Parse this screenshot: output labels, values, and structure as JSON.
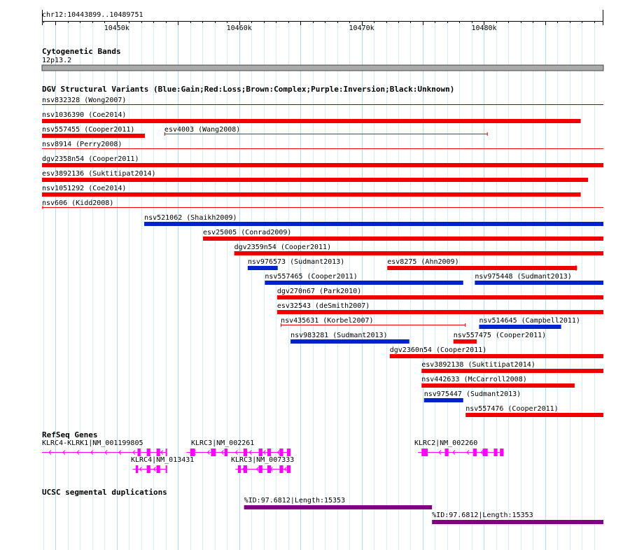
{
  "ruler": {
    "label": "chr12:10443899..10489751",
    "ticks": [
      {
        "label": "10450k",
        "pos": 10450000
      },
      {
        "label": "10460k",
        "pos": 10460000
      },
      {
        "label": "10470k",
        "pos": 10470000
      },
      {
        "label": "10480k",
        "pos": 10480000
      }
    ]
  },
  "view": {
    "start": 10443899,
    "end": 10489751
  },
  "tracks": {
    "cytoband": {
      "title": "Cytogenetic Bands",
      "band": "12p13.2",
      "color": "#aaaaaa"
    },
    "dgv": {
      "title": "DGV Structural Variants (Blue:Gain;Red:Loss;Brown:Complex;Purple:Inversion;Black:Unknown)",
      "legend": {
        "Gain": "#0022cc",
        "Loss": "#ee0000",
        "Complex": "#8b4513",
        "Inversion": "#800080",
        "Unknown": "#000000"
      },
      "features": [
        {
          "id": "nsv832328",
          "source": "(Wong2007)",
          "label": "nsv832328 (Wong2007)",
          "type": "Gain",
          "style": "line",
          "start": 10443899,
          "end": 10489751
        },
        {
          "id": "nsv1036390",
          "source": "(Coe2014)",
          "label": "nsv1036390 (Coe2014)",
          "type": "Loss",
          "style": "bar",
          "start": 10443899,
          "end": 10487900
        },
        {
          "id": "nsv557455",
          "source": "(Cooper2011)",
          "label": "nsv557455 (Cooper2011)",
          "type": "Loss",
          "style": "bar",
          "start": 10443899,
          "end": 10452300
        },
        {
          "id": "esv4003",
          "source": "(Wang2008)",
          "label": "esv4003 (Wang2008)",
          "type": "Loss",
          "style": "line",
          "start": 10453900,
          "end": 10480300
        },
        {
          "id": "nsv8914",
          "source": "(Perry2008)",
          "label": "nsv8914 (Perry2008)",
          "type": "Loss",
          "style": "line",
          "start": 10443899,
          "end": 10489751
        },
        {
          "id": "dgv2358n54",
          "source": "(Cooper2011)",
          "label": "dgv2358n54 (Cooper2011)",
          "type": "Loss",
          "style": "bar",
          "start": 10443899,
          "end": 10489751
        },
        {
          "id": "esv3892136",
          "source": "(Suktitipat2014)",
          "label": "esv3892136 (Suktitipat2014)",
          "type": "Loss",
          "style": "bar",
          "start": 10443899,
          "end": 10488500
        },
        {
          "id": "nsv1051292",
          "source": "(Coe2014)",
          "label": "nsv1051292 (Coe2014)",
          "type": "Loss",
          "style": "bar",
          "start": 10443899,
          "end": 10487900
        },
        {
          "id": "nsv606",
          "source": "(Kidd2008)",
          "label": "nsv606 (Kidd2008)",
          "type": "Loss",
          "style": "line",
          "start": 10443899,
          "end": 10489751
        },
        {
          "id": "nsv521062",
          "source": "(Shaikh2009)",
          "label": "nsv521062 (Shaikh2009)",
          "type": "Gain",
          "style": "bar",
          "start": 10452250,
          "end": 10489751
        },
        {
          "id": "esv25005",
          "source": "(Conrad2009)",
          "label": "esv25005 (Conrad2009)",
          "type": "Loss",
          "style": "bar",
          "start": 10457050,
          "end": 10489751
        },
        {
          "id": "dgv2359n54",
          "source": "(Cooper2011)",
          "label": "dgv2359n54 (Cooper2011)",
          "type": "Loss",
          "style": "bar",
          "start": 10459600,
          "end": 10489751
        },
        {
          "id": "nsv976573",
          "source": "(Sudmant2013)",
          "label": "nsv976573 (Sudmant2013)",
          "type": "Gain",
          "style": "bar",
          "start": 10460700,
          "end": 10463150
        },
        {
          "id": "esv8275",
          "source": "(Ahn2009)",
          "label": "esv8275 (Ahn2009)",
          "type": "Loss",
          "style": "bar",
          "start": 10472100,
          "end": 10487600
        },
        {
          "id": "nsv557465",
          "source": "(Cooper2011)",
          "label": "nsv557465 (Cooper2011)",
          "type": "Gain",
          "style": "bar",
          "start": 10462100,
          "end": 10478300
        },
        {
          "id": "nsv975448",
          "source": "(Sudmant2013)",
          "label": "nsv975448 (Sudmant2013)",
          "type": "Gain",
          "style": "bar",
          "start": 10479250,
          "end": 10489751
        },
        {
          "id": "dgv270n67",
          "source": "(Park2010)",
          "label": "dgv270n67 (Park2010)",
          "type": "Loss",
          "style": "bar",
          "start": 10463100,
          "end": 10489751
        },
        {
          "id": "esv32543",
          "source": "(deSmith2007)",
          "label": "esv32543 (deSmith2007)",
          "type": "Loss",
          "style": "bar",
          "start": 10463100,
          "end": 10489751
        },
        {
          "id": "nsv435631",
          "source": "(Korbel2007)",
          "label": "nsv435631 (Korbel2007)",
          "type": "Loss",
          "style": "line",
          "start": 10463400,
          "end": 10478500
        },
        {
          "id": "nsv514645",
          "source": "(Campbell2011)",
          "label": "nsv514645 (Campbell2011)",
          "type": "Gain",
          "style": "bar",
          "start": 10479600,
          "end": 10486300
        },
        {
          "id": "nsv983281",
          "source": "(Sudmant2013)",
          "label": "nsv983281 (Sudmant2013)",
          "type": "Gain",
          "style": "bar",
          "start": 10464200,
          "end": 10473900
        },
        {
          "id": "nsv557475",
          "source": "(Cooper2011)",
          "label": "nsv557475 (Cooper2011)",
          "type": "Loss",
          "style": "bar",
          "start": 10477500,
          "end": 10479400
        },
        {
          "id": "dgv2360n54",
          "source": "(Cooper2011)",
          "label": "dgv2360n54 (Cooper2011)",
          "type": "Loss",
          "style": "bar",
          "start": 10472300,
          "end": 10489751
        },
        {
          "id": "esv3892138",
          "source": "(Suktitipat2014)",
          "label": "esv3892138 (Suktitipat2014)",
          "type": "Loss",
          "style": "bar",
          "start": 10474900,
          "end": 10489751
        },
        {
          "id": "nsv442633",
          "source": "(McCarroll2008)",
          "label": "nsv442633 (McCarroll2008)",
          "type": "Loss",
          "style": "bar",
          "start": 10474900,
          "end": 10487400
        },
        {
          "id": "nsv975447",
          "source": "(Sudmant2013)",
          "label": "nsv975447 (Sudmant2013)",
          "type": "Gain",
          "style": "bar",
          "start": 10475100,
          "end": 10478300
        },
        {
          "id": "nsv557476",
          "source": "(Cooper2011)",
          "label": "nsv557476 (Cooper2011)",
          "type": "Loss",
          "style": "bar",
          "start": 10478500,
          "end": 10489751
        }
      ]
    },
    "refseq": {
      "title": "RefSeq Genes",
      "color": "#ff00ff",
      "genes": [
        {
          "label": "KLRC4-KLRK1|NM_001199805",
          "start": 10443899,
          "end": 10454050,
          "exons": [
            [
              10451700,
              10451950
            ],
            [
              10452450,
              10452750
            ],
            [
              10453250,
              10453550
            ],
            [
              10454000,
              10454050
            ]
          ]
        },
        {
          "label": "KLRC4|NM_013431",
          "start": 10451300,
          "end": 10454050,
          "exons": [
            [
              10451550,
              10451750
            ],
            [
              10452450,
              10452750
            ],
            [
              10453250,
              10453550
            ],
            [
              10454000,
              10454050
            ]
          ]
        },
        {
          "label": "KLRC3|NM_002261",
          "start": 10455700,
          "end": 10464200,
          "exons": [
            [
              10456000,
              10456400
            ],
            [
              10457700,
              10458100
            ],
            [
              10458800,
              10459050
            ],
            [
              10460350,
              10460650
            ],
            [
              10461600,
              10461900
            ],
            [
              10462300,
              10462600
            ],
            [
              10463300,
              10463600
            ],
            [
              10463900,
              10464200
            ]
          ]
        },
        {
          "label": "KLRC3|NM_007333",
          "start": 10459700,
          "end": 10464200,
          "exons": [
            [
              10459900,
              10460150
            ],
            [
              10460350,
              10460650
            ],
            [
              10461600,
              10461900
            ],
            [
              10462300,
              10462600
            ],
            [
              10463300,
              10463600
            ],
            [
              10463900,
              10464200
            ]
          ]
        },
        {
          "label": "KLRC2|NM_002260",
          "start": 10474600,
          "end": 10481600,
          "exons": [
            [
              10474900,
              10475400
            ],
            [
              10476800,
              10477100
            ],
            [
              10479100,
              10479400
            ],
            [
              10479900,
              10480300
            ],
            [
              10480800,
              10481100
            ],
            [
              10481300,
              10481600
            ]
          ]
        }
      ]
    },
    "segdups": {
      "title": "UCSC segmental duplications",
      "color": "#800080",
      "features": [
        {
          "label": "%ID:97.6812|Length:15353",
          "start": 10460400,
          "end": 10475753
        },
        {
          "label": "%ID:97.6812|Length:15353",
          "start": 10475753,
          "end": 10489751
        }
      ]
    }
  }
}
